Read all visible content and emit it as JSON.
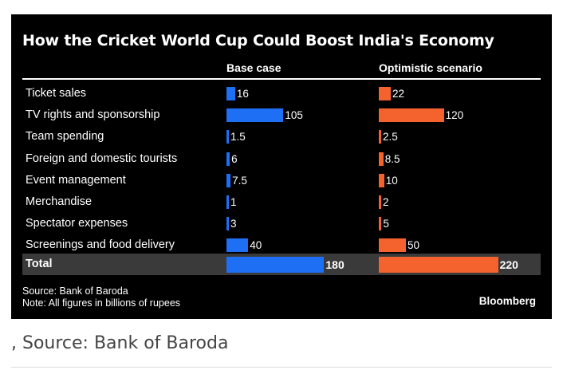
{
  "caption": ", Source: Bank of Baroda",
  "brand": "Bloomberg",
  "source_lines": [
    "Source: Bank of Baroda",
    "Note: All figures in billions of rupees"
  ],
  "colors": {
    "base": "#1f6ff5",
    "optimistic": "#f4622e",
    "background": "#000000",
    "total_row": "#3a3a3a"
  },
  "chart_data": {
    "type": "bar",
    "title": "How the Cricket World Cup Could Boost India's Economy",
    "categories": [
      "Ticket sales",
      "TV rights and sponsorship",
      "Team spending",
      "Foreign and domestic tourists",
      "Event management",
      "Merchandise",
      "Spectator expenses",
      "Screenings and food delivery",
      "Total"
    ],
    "series": [
      {
        "name": "Base case",
        "values": [
          16,
          105,
          1.5,
          6,
          7.5,
          1,
          3,
          40,
          180
        ]
      },
      {
        "name": "Optimistic scenario",
        "values": [
          22,
          120,
          2.5,
          8.5,
          10,
          2,
          5,
          50,
          220
        ]
      }
    ],
    "xlabel": "",
    "ylabel": ""
  }
}
